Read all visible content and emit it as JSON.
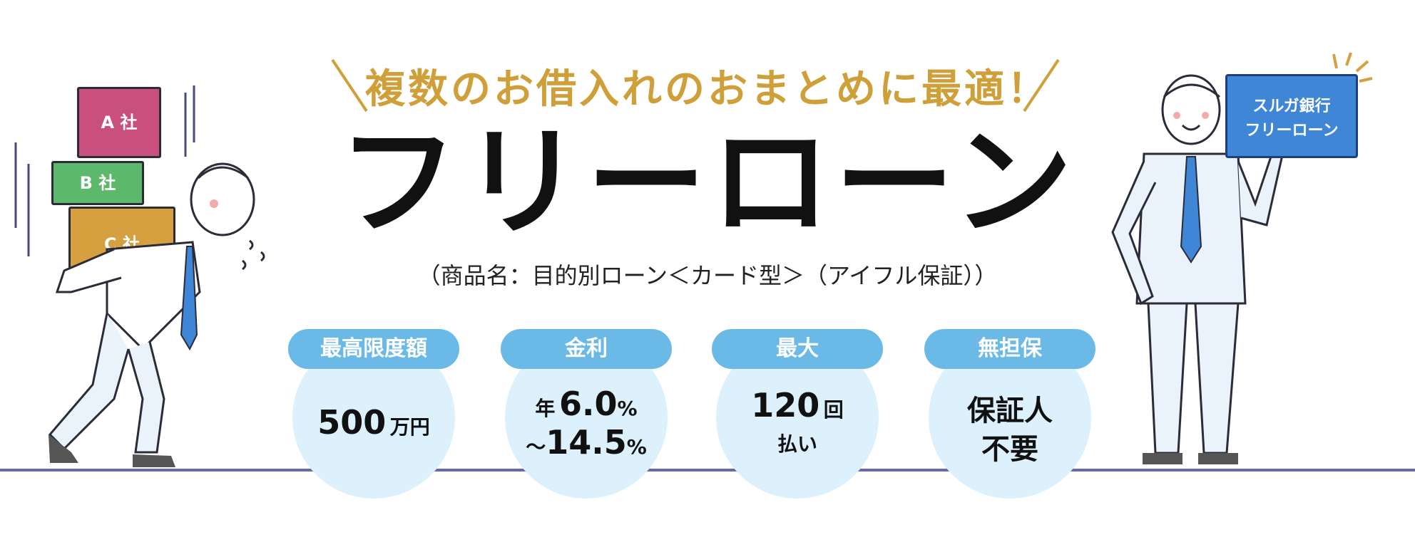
{
  "header": {
    "tagline": "複数のお借入れのおまとめに最適！",
    "title": "フリーローン",
    "subtitle": "（商品名：目的別ローン＜カード型＞（アイフル保証））"
  },
  "features": [
    {
      "label": "最高限度額",
      "value_main": "500",
      "value_unit": "万円"
    },
    {
      "label": "金利",
      "prefix": "年",
      "line1": "6.0",
      "line2": "14.5",
      "tilde": "～",
      "percent": "%"
    },
    {
      "label": "最大",
      "value_main": "120",
      "value_unit": "回",
      "line2": "払い"
    },
    {
      "label": "無担保",
      "line1": "保証人",
      "line2": "不要"
    }
  ],
  "illustration": {
    "box_a": "A 社",
    "box_b": "B 社",
    "box_c": "C 社",
    "card_line1": "スルガ銀行",
    "card_line2": "フリーローン"
  },
  "colors": {
    "tagline": "#cfa03a",
    "pill": "#6bb9e6",
    "circle": "#dcf1fc",
    "box_a": "#c94f7c",
    "box_b": "#5cb86a",
    "box_c": "#d6a040",
    "card": "#3f86d6"
  }
}
